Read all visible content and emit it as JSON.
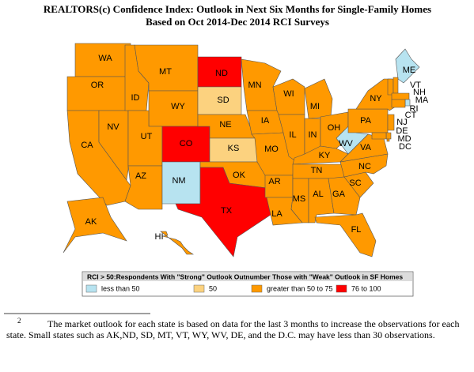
{
  "title": [
    "REALTORS(c) Confidence Index: Outlook in Next Six Months for Single-Family Homes",
    "Based on Oct 2014-Dec 2014 RCI Surveys"
  ],
  "states": [
    {
      "label": "WA",
      "color": "#ff9900"
    },
    {
      "label": "OR",
      "color": "#ff9900"
    },
    {
      "label": "CA",
      "color": "#ff9900"
    },
    {
      "label": "NV",
      "color": "#ff9900"
    },
    {
      "label": "ID",
      "color": "#ff9900"
    },
    {
      "label": "MT",
      "color": "#ff9900"
    },
    {
      "label": "WY",
      "color": "#ff9900"
    },
    {
      "label": "UT",
      "color": "#ff9900"
    },
    {
      "label": "AZ",
      "color": "#ff9900"
    },
    {
      "label": "CO",
      "color": "#ff0000"
    },
    {
      "label": "NM",
      "color": "#b7e3f0"
    },
    {
      "label": "ND",
      "color": "#ff0000"
    },
    {
      "label": "SD",
      "color": "#fcd27f"
    },
    {
      "label": "NE",
      "color": "#ff9900"
    },
    {
      "label": "KS",
      "color": "#fcd27f"
    },
    {
      "label": "OK",
      "color": "#ff9900"
    },
    {
      "label": "TX",
      "color": "#ff0000"
    },
    {
      "label": "MN",
      "color": "#ff9900"
    },
    {
      "label": "IA",
      "color": "#ff9900"
    },
    {
      "label": "MO",
      "color": "#ff9900"
    },
    {
      "label": "AR",
      "color": "#ff9900"
    },
    {
      "label": "LA",
      "color": "#ff9900"
    },
    {
      "label": "WI",
      "color": "#ff9900"
    },
    {
      "label": "IL",
      "color": "#ff9900"
    },
    {
      "label": "MI",
      "color": "#ff9900"
    },
    {
      "label": "IN",
      "color": "#ff9900"
    },
    {
      "label": "OH",
      "color": "#ff9900"
    },
    {
      "label": "KY",
      "color": "#ff9900"
    },
    {
      "label": "TN",
      "color": "#ff9900"
    },
    {
      "label": "MS",
      "color": "#ff9900"
    },
    {
      "label": "AL",
      "color": "#ff9900"
    },
    {
      "label": "GA",
      "color": "#ff9900"
    },
    {
      "label": "FL",
      "color": "#ff9900"
    },
    {
      "label": "SC",
      "color": "#ff9900"
    },
    {
      "label": "NC",
      "color": "#ff9900"
    },
    {
      "label": "VA",
      "color": "#ff9900"
    },
    {
      "label": "WV",
      "color": "#b7e3f0"
    },
    {
      "label": "PA",
      "color": "#ff9900"
    },
    {
      "label": "NY",
      "color": "#ff9900"
    },
    {
      "label": "ME",
      "color": "#b7e3f0"
    },
    {
      "label": "VT",
      "color": "#ff9900"
    },
    {
      "label": "NH",
      "color": "#ff9900"
    },
    {
      "label": "MA",
      "color": "#ff9900"
    },
    {
      "label": "RI",
      "color": "#b7e3f0"
    },
    {
      "label": "CT",
      "color": "#ff9900"
    },
    {
      "label": "NJ",
      "color": "#ff9900"
    },
    {
      "label": "DE",
      "color": "#ff9900"
    },
    {
      "label": "MD",
      "color": "#ff9900"
    },
    {
      "label": "DC",
      "color": "#ff9900"
    },
    {
      "label": "AK",
      "color": "#ff9900"
    },
    {
      "label": "HI",
      "color": "#ff9900"
    }
  ],
  "legend": {
    "title": "RCI > 50:Respondents With \"Strong\" Outlook Outnumber Those with \"Weak\" Outlook in SF Homes",
    "items": [
      {
        "label": "less than 50",
        "color": "#b7e3f0"
      },
      {
        "label": "50",
        "color": "#fcd27f"
      },
      {
        "label": "greater than 50 to 75",
        "color": "#ff9900"
      },
      {
        "label": "76 to 100",
        "color": "#ff0000"
      }
    ]
  },
  "footnote": {
    "marker": "2",
    "text": "The market outlook for each state is based on data for the last 3 months to increase the observations for each state. Small states such as AK,ND, SD, MT, VT, WY, WV, DE, and the D.C. may have less than 30 observations."
  }
}
